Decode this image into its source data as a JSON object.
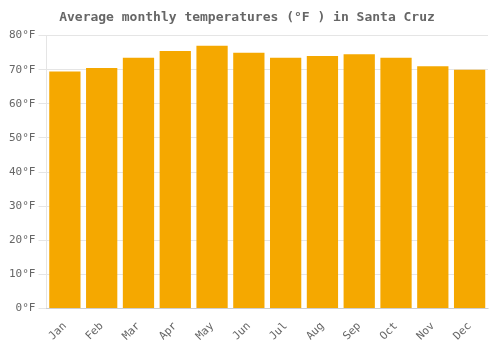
{
  "chart_data": {
    "type": "bar",
    "title": "Average monthly temperatures (°F ) in Santa Cruz",
    "categories": [
      "Jan",
      "Feb",
      "Mar",
      "Apr",
      "May",
      "Jun",
      "Jul",
      "Aug",
      "Sep",
      "Oct",
      "Nov",
      "Dec"
    ],
    "values": [
      69.5,
      70.5,
      73.5,
      75.5,
      77.0,
      75.0,
      73.5,
      74.0,
      74.5,
      73.5,
      71.0,
      70.0
    ],
    "color": "#F5A800",
    "ylim": [
      0,
      80
    ],
    "yticks": [
      {
        "value": 0,
        "label": "0°F"
      },
      {
        "value": 10,
        "label": "10°F"
      },
      {
        "value": 20,
        "label": "20°F"
      },
      {
        "value": 30,
        "label": "30°F"
      },
      {
        "value": 40,
        "label": "40°F"
      },
      {
        "value": 50,
        "label": "50°F"
      },
      {
        "value": 60,
        "label": "60°F"
      },
      {
        "value": 70,
        "label": "70°F"
      },
      {
        "value": 80,
        "label": "80°F"
      }
    ],
    "grid": true
  }
}
